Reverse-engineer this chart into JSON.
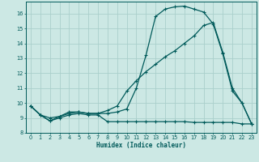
{
  "xlabel": "Humidex (Indice chaleur)",
  "bg_color": "#cce8e4",
  "grid_color": "#aacfcb",
  "line_color": "#005a5a",
  "xlim": [
    -0.5,
    23.5
  ],
  "ylim": [
    8.0,
    16.8
  ],
  "yticks": [
    8,
    9,
    10,
    11,
    12,
    13,
    14,
    15,
    16
  ],
  "xticks": [
    0,
    1,
    2,
    3,
    4,
    5,
    6,
    7,
    8,
    9,
    10,
    11,
    12,
    13,
    14,
    15,
    16,
    17,
    18,
    19,
    20,
    21,
    22,
    23
  ],
  "line1_x": [
    0,
    1,
    2,
    3,
    4,
    5,
    6,
    7,
    8,
    9,
    10,
    11,
    12,
    13,
    14,
    15,
    16,
    17,
    18,
    19,
    20,
    21,
    22,
    23
  ],
  "line1_y": [
    9.8,
    9.2,
    8.8,
    9.1,
    9.4,
    9.4,
    9.3,
    9.3,
    9.3,
    9.4,
    9.6,
    11.0,
    13.2,
    15.8,
    16.3,
    16.45,
    16.5,
    16.3,
    16.1,
    15.3,
    13.3,
    10.8,
    10.0,
    8.6
  ],
  "line2_x": [
    0,
    1,
    2,
    3,
    4,
    5,
    6,
    7,
    8,
    9,
    10,
    11,
    12,
    13,
    14,
    15,
    16,
    17,
    18,
    19,
    20,
    21,
    22,
    23
  ],
  "line2_y": [
    9.8,
    9.2,
    8.8,
    9.0,
    9.2,
    9.3,
    9.2,
    9.2,
    8.75,
    8.75,
    8.75,
    8.75,
    8.75,
    8.75,
    8.75,
    8.75,
    8.75,
    8.7,
    8.7,
    8.7,
    8.7,
    8.7,
    8.6,
    8.6
  ],
  "line3_x": [
    0,
    1,
    2,
    3,
    4,
    5,
    6,
    7,
    8,
    9,
    10,
    11,
    12,
    13,
    14,
    15,
    16,
    17,
    18,
    19,
    20,
    21,
    22,
    23
  ],
  "line3_y": [
    9.8,
    9.2,
    9.0,
    9.1,
    9.3,
    9.4,
    9.3,
    9.3,
    9.5,
    9.8,
    10.8,
    11.5,
    12.1,
    12.6,
    13.1,
    13.5,
    14.0,
    14.5,
    15.2,
    15.4,
    13.4,
    11.0,
    10.0,
    8.6
  ]
}
